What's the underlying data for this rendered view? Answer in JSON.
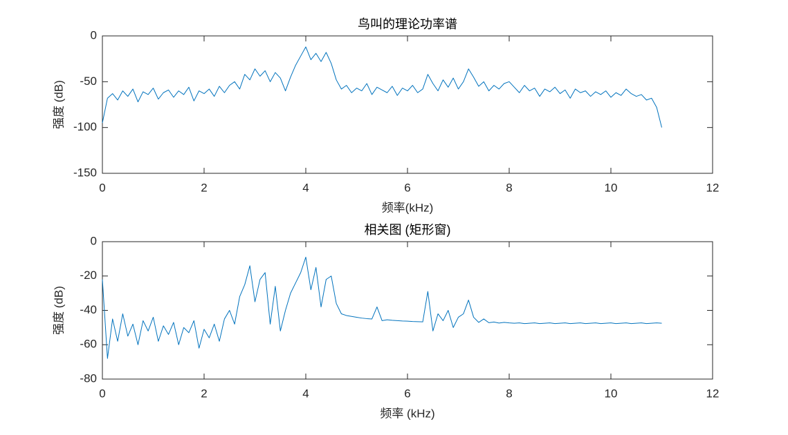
{
  "chart_data": [
    {
      "type": "line",
      "title": "鸟叫的理论功率谱",
      "xlabel": "频率(kHz)",
      "ylabel": "强度 (dB)",
      "xlim": [
        0,
        12
      ],
      "xticks": [
        0,
        2,
        4,
        6,
        8,
        10,
        12
      ],
      "ylim": [
        -150,
        0
      ],
      "yticks": [
        -150,
        -100,
        -50,
        0
      ],
      "grid": false,
      "x": [
        0,
        0.1,
        0.2,
        0.3,
        0.4,
        0.5,
        0.6,
        0.7,
        0.8,
        0.9,
        1,
        1.1,
        1.2,
        1.3,
        1.4,
        1.5,
        1.6,
        1.7,
        1.8,
        1.9,
        2,
        2.1,
        2.2,
        2.3,
        2.4,
        2.5,
        2.6,
        2.7,
        2.8,
        2.9,
        3,
        3.1,
        3.2,
        3.3,
        3.4,
        3.5,
        3.6,
        3.7,
        3.8,
        3.9,
        4,
        4.1,
        4.2,
        4.3,
        4.4,
        4.5,
        4.6,
        4.7,
        4.8,
        4.9,
        5,
        5.1,
        5.2,
        5.3,
        5.4,
        5.5,
        5.6,
        5.7,
        5.8,
        5.9,
        6,
        6.1,
        6.2,
        6.3,
        6.4,
        6.5,
        6.6,
        6.7,
        6.8,
        6.9,
        7,
        7.1,
        7.2,
        7.3,
        7.4,
        7.5,
        7.6,
        7.7,
        7.8,
        7.9,
        8,
        8.1,
        8.2,
        8.3,
        8.4,
        8.5,
        8.6,
        8.7,
        8.8,
        8.9,
        9,
        9.1,
        9.2,
        9.3,
        9.4,
        9.5,
        9.6,
        9.7,
        9.8,
        9.9,
        10,
        10.1,
        10.2,
        10.3,
        10.4,
        10.5,
        10.6,
        10.7,
        10.8,
        10.9,
        11
      ],
      "series": [
        {
          "color": "#0072bd",
          "values": [
            -95,
            -68,
            -63,
            -70,
            -60,
            -66,
            -58,
            -72,
            -61,
            -64,
            -57,
            -69,
            -62,
            -59,
            -67,
            -60,
            -64,
            -56,
            -71,
            -60,
            -63,
            -58,
            -66,
            -55,
            -62,
            -54,
            -50,
            -58,
            -42,
            -48,
            -36,
            -44,
            -38,
            -50,
            -40,
            -46,
            -60,
            -45,
            -32,
            -22,
            -12,
            -26,
            -19,
            -28,
            -18,
            -30,
            -48,
            -58,
            -54,
            -62,
            -57,
            -60,
            -52,
            -64,
            -56,
            -59,
            -62,
            -55,
            -65,
            -57,
            -60,
            -54,
            -62,
            -58,
            -42,
            -52,
            -60,
            -48,
            -56,
            -46,
            -58,
            -50,
            -36,
            -45,
            -55,
            -50,
            -60,
            -54,
            -58,
            -52,
            -50,
            -56,
            -62,
            -54,
            -60,
            -57,
            -66,
            -58,
            -61,
            -56,
            -63,
            -59,
            -68,
            -58,
            -62,
            -60,
            -66,
            -61,
            -64,
            -60,
            -67,
            -62,
            -65,
            -58,
            -63,
            -66,
            -64,
            -70,
            -68,
            -78,
            -100
          ]
        }
      ]
    },
    {
      "type": "line",
      "title": "相关图 (矩形窗)",
      "xlabel": "频率 (kHz)",
      "ylabel": "强度 (dB)",
      "xlim": [
        0,
        12
      ],
      "xticks": [
        0,
        2,
        4,
        6,
        8,
        10,
        12
      ],
      "ylim": [
        -80,
        0
      ],
      "yticks": [
        -80,
        -60,
        -40,
        -20,
        0
      ],
      "grid": false,
      "x": [
        0,
        0.1,
        0.2,
        0.3,
        0.4,
        0.5,
        0.6,
        0.7,
        0.8,
        0.9,
        1,
        1.1,
        1.2,
        1.3,
        1.4,
        1.5,
        1.6,
        1.7,
        1.8,
        1.9,
        2,
        2.1,
        2.2,
        2.3,
        2.4,
        2.5,
        2.6,
        2.7,
        2.8,
        2.9,
        3,
        3.1,
        3.2,
        3.3,
        3.4,
        3.5,
        3.6,
        3.7,
        3.8,
        3.9,
        4,
        4.1,
        4.2,
        4.3,
        4.4,
        4.5,
        4.6,
        4.7,
        4.8,
        4.9,
        5,
        5.1,
        5.2,
        5.3,
        5.4,
        5.5,
        5.6,
        5.7,
        5.8,
        5.9,
        6,
        6.1,
        6.2,
        6.3,
        6.4,
        6.5,
        6.6,
        6.7,
        6.8,
        6.9,
        7,
        7.1,
        7.2,
        7.3,
        7.4,
        7.5,
        7.6,
        7.7,
        7.8,
        7.9,
        8,
        8.1,
        8.2,
        8.3,
        8.4,
        8.5,
        8.6,
        8.7,
        8.8,
        8.9,
        9,
        9.1,
        9.2,
        9.3,
        9.4,
        9.5,
        9.6,
        9.7,
        9.8,
        9.9,
        10,
        10.1,
        10.2,
        10.3,
        10.4,
        10.5,
        10.6,
        10.7,
        10.8,
        10.9,
        11
      ],
      "series": [
        {
          "color": "#0072bd",
          "values": [
            -22,
            -68,
            -45,
            -58,
            -42,
            -55,
            -48,
            -60,
            -46,
            -52,
            -44,
            -58,
            -49,
            -54,
            -47,
            -60,
            -50,
            -53,
            -46,
            -62,
            -51,
            -56,
            -48,
            -58,
            -45,
            -40,
            -48,
            -32,
            -25,
            -14,
            -35,
            -22,
            -18,
            -48,
            -26,
            -52,
            -40,
            -30,
            -24,
            -18,
            -9,
            -28,
            -15,
            -38,
            -22,
            -20,
            -36,
            -42,
            -43,
            -43.5,
            -44,
            -44.5,
            -44.8,
            -45,
            -38,
            -46,
            -45.5,
            -45.8,
            -46,
            -46.2,
            -46.3,
            -46.5,
            -46.6,
            -46.7,
            -29,
            -52,
            -42,
            -46,
            -40,
            -50,
            -44,
            -42,
            -34,
            -44,
            -47,
            -45,
            -47.2,
            -46.8,
            -47.4,
            -47,
            -47.3,
            -47.5,
            -47.3,
            -47.7,
            -47.5,
            -47.3,
            -47.7,
            -47.5,
            -47.3,
            -47.7,
            -47.5,
            -47.3,
            -47.7,
            -47.5,
            -47.3,
            -47.7,
            -47.5,
            -47.3,
            -47.7,
            -47.5,
            -47.3,
            -47.7,
            -47.5,
            -47.3,
            -47.7,
            -47.5,
            -47.3,
            -47.7,
            -47.5,
            -47.3,
            -47.5
          ]
        }
      ]
    }
  ]
}
